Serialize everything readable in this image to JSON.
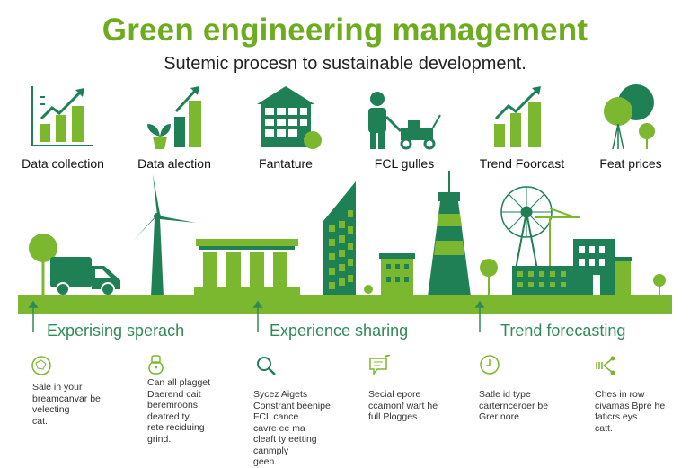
{
  "header": {
    "title": "Green engineering management",
    "subtitle": "Sutemic procesn to sustainable development."
  },
  "top_icons": [
    {
      "label": "Data collection",
      "icon": "chart-growth-icon"
    },
    {
      "label": "Data alection",
      "icon": "plant-chart-icon"
    },
    {
      "label": "Fantature",
      "icon": "building-icon"
    },
    {
      "label": "FCL gulles",
      "icon": "worker-mower-icon"
    },
    {
      "label": "Trend Foorcast",
      "icon": "trend-chart-icon"
    },
    {
      "label": "Feat prices",
      "icon": "trees-icon"
    }
  ],
  "sections": [
    {
      "heading": "Experising sperach"
    },
    {
      "heading": "Experience sharing"
    },
    {
      "heading": "Trend forecasting"
    }
  ],
  "details": [
    {
      "icon": "globe-icon",
      "text": "Sale in your\nbreamcanvar be\nvelecting\ncat."
    },
    {
      "icon": "lock-icon",
      "text": "Can all plagget\nDaerend cait\nberemroons\ndeatred ty\nrete reciduing\ngrind."
    },
    {
      "icon": "search-icon",
      "text": "Sycez Aigets\nConstrant beenipe\nFCL cance\ncavre ee ma\ncleaft ty eetting\ncanmply\ngeen."
    },
    {
      "icon": "chat-icon",
      "text": "Secial epore\nccamonf wart he\nfull Plogges"
    },
    {
      "icon": "clock-icon",
      "text": "Satle id type\ncarternceroer be\nGrer nore"
    },
    {
      "icon": "share-icon",
      "text": "Ches in row\ncivamas Bpre he\nfaticrs eys\ncatt."
    }
  ],
  "colors": {
    "dark_green": "#1f7f55",
    "light_green": "#7cb82f",
    "title_green": "#6dab1f"
  }
}
